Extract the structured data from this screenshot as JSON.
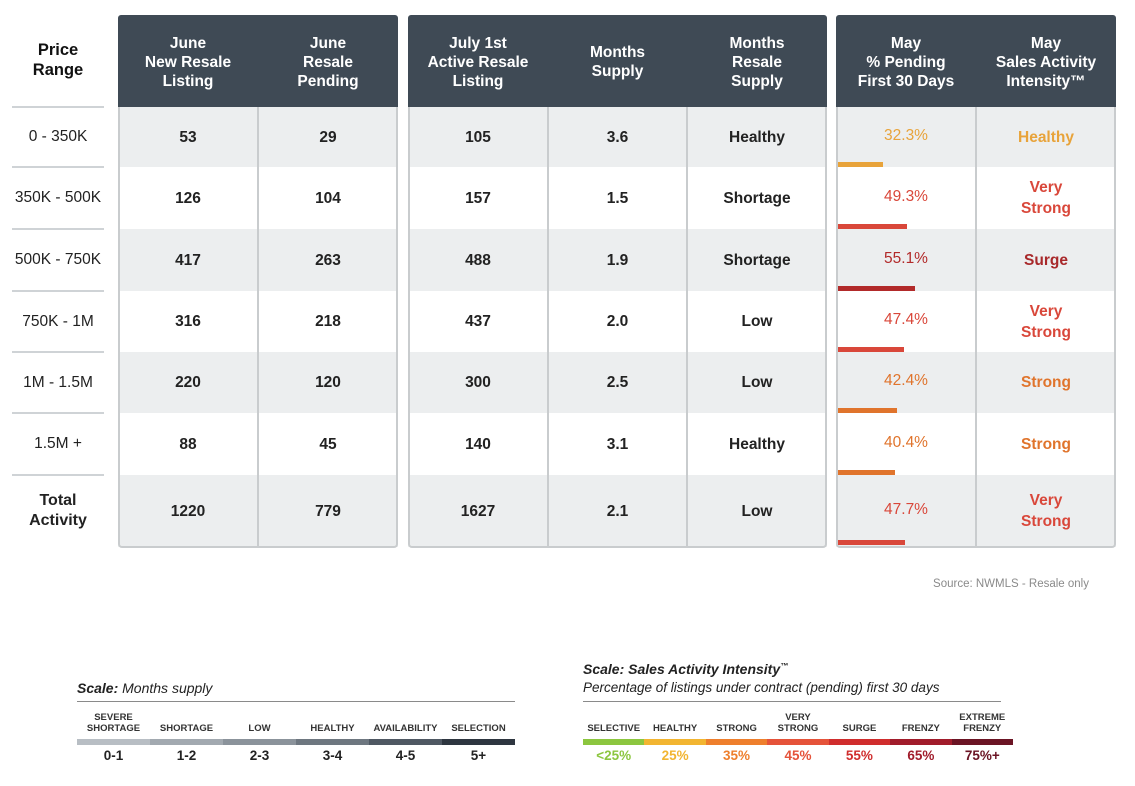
{
  "table": {
    "price_range_header": "Price\nRange",
    "headers": [
      "June\nNew Resale\nListing",
      "June\nResale\nPending",
      "July 1st\nActive Resale\nListing",
      "Months\nSupply",
      "Months\nResale\nSupply",
      "May\n% Pending\nFirst 30 Days",
      "May\nSales Activity\nIntensity™"
    ],
    "rows": [
      {
        "range": "0 - 350K",
        "new_listing": "53",
        "pending": "29",
        "active": "105",
        "months_supply": "3.6",
        "resale_supply": "Healthy",
        "pct_pending": "32.3%",
        "intensity": "Healthy"
      },
      {
        "range": "350K - 500K",
        "new_listing": "126",
        "pending": "104",
        "active": "157",
        "months_supply": "1.5",
        "resale_supply": "Shortage",
        "pct_pending": "49.3%",
        "intensity": "Very\nStrong"
      },
      {
        "range": "500K - 750K",
        "new_listing": "417",
        "pending": "263",
        "active": "488",
        "months_supply": "1.9",
        "resale_supply": "Shortage",
        "pct_pending": "55.1%",
        "intensity": "Surge"
      },
      {
        "range": "750K - 1M",
        "new_listing": "316",
        "pending": "218",
        "active": "437",
        "months_supply": "2.0",
        "resale_supply": "Low",
        "pct_pending": "47.4%",
        "intensity": "Very\nStrong"
      },
      {
        "range": "1M - 1.5M",
        "new_listing": "220",
        "pending": "120",
        "active": "300",
        "months_supply": "2.5",
        "resale_supply": "Low",
        "pct_pending": "42.4%",
        "intensity": "Strong"
      },
      {
        "range": "1.5M +",
        "new_listing": "88",
        "pending": "45",
        "active": "140",
        "months_supply": "3.1",
        "resale_supply": "Healthy",
        "pct_pending": "40.4%",
        "intensity": "Strong"
      },
      {
        "range": "Total\nActivity",
        "new_listing": "1220",
        "pending": "779",
        "active": "1627",
        "months_supply": "2.1",
        "resale_supply": "Low",
        "pct_pending": "47.7%",
        "intensity": "Very\nStrong"
      }
    ]
  },
  "chart_data": {
    "type": "table",
    "columns": [
      "Price Range",
      "June New Resale Listing",
      "June Resale Pending",
      "July 1st Active Resale Listing",
      "Months Supply",
      "Months Resale Supply",
      "May % Pending First 30 Days",
      "May Sales Activity Intensity™"
    ],
    "pct_pending_values": [
      32.3,
      49.3,
      55.1,
      47.4,
      42.4,
      40.4,
      47.7
    ],
    "pct_pending_colors": [
      "#e8a33a",
      "#d9473a",
      "#b22a2a",
      "#d9473a",
      "#e0742c",
      "#e0742c",
      "#d9473a"
    ]
  },
  "source": "Source: NWMLS - Resale only",
  "months_scale": {
    "title_bold": "Scale:",
    "title_rest": " Months supply",
    "items": [
      {
        "name": "SEVERE\nSHORTAGE",
        "value": "0-1",
        "color": "#b8bec4"
      },
      {
        "name": "SHORTAGE",
        "value": "1-2",
        "color": "#a2a9b0"
      },
      {
        "name": "LOW",
        "value": "2-3",
        "color": "#8b939b"
      },
      {
        "name": "HEALTHY",
        "value": "3-4",
        "color": "#6e7780"
      },
      {
        "name": "AVAILABILITY",
        "value": "4-5",
        "color": "#4f5863"
      },
      {
        "name": "SELECTION",
        "value": "5+",
        "color": "#2e3640"
      }
    ]
  },
  "intensity_scale": {
    "title": "Scale: Sales Activity Intensity",
    "tm": "™",
    "subtitle": "Percentage of listings under contract (pending) first 30 days",
    "items": [
      {
        "name": "SELECTIVE",
        "value": "<25%",
        "color": "#8cc63f"
      },
      {
        "name": "HEALTHY",
        "value": "25%",
        "color": "#f2b531"
      },
      {
        "name": "STRONG",
        "value": "35%",
        "color": "#ee7f2d"
      },
      {
        "name": "VERY\nSTRONG",
        "value": "45%",
        "color": "#e5533a"
      },
      {
        "name": "SURGE",
        "value": "55%",
        "color": "#d02d2d"
      },
      {
        "name": "FRENZY",
        "value": "65%",
        "color": "#a11c2b"
      },
      {
        "name": "EXTREME\nFRENZY",
        "value": "75%+",
        "color": "#6b1424"
      }
    ]
  },
  "colors": {
    "header_bg": "#3f4a55",
    "row_alt": "#eceeef",
    "supply_text": "#222222"
  }
}
